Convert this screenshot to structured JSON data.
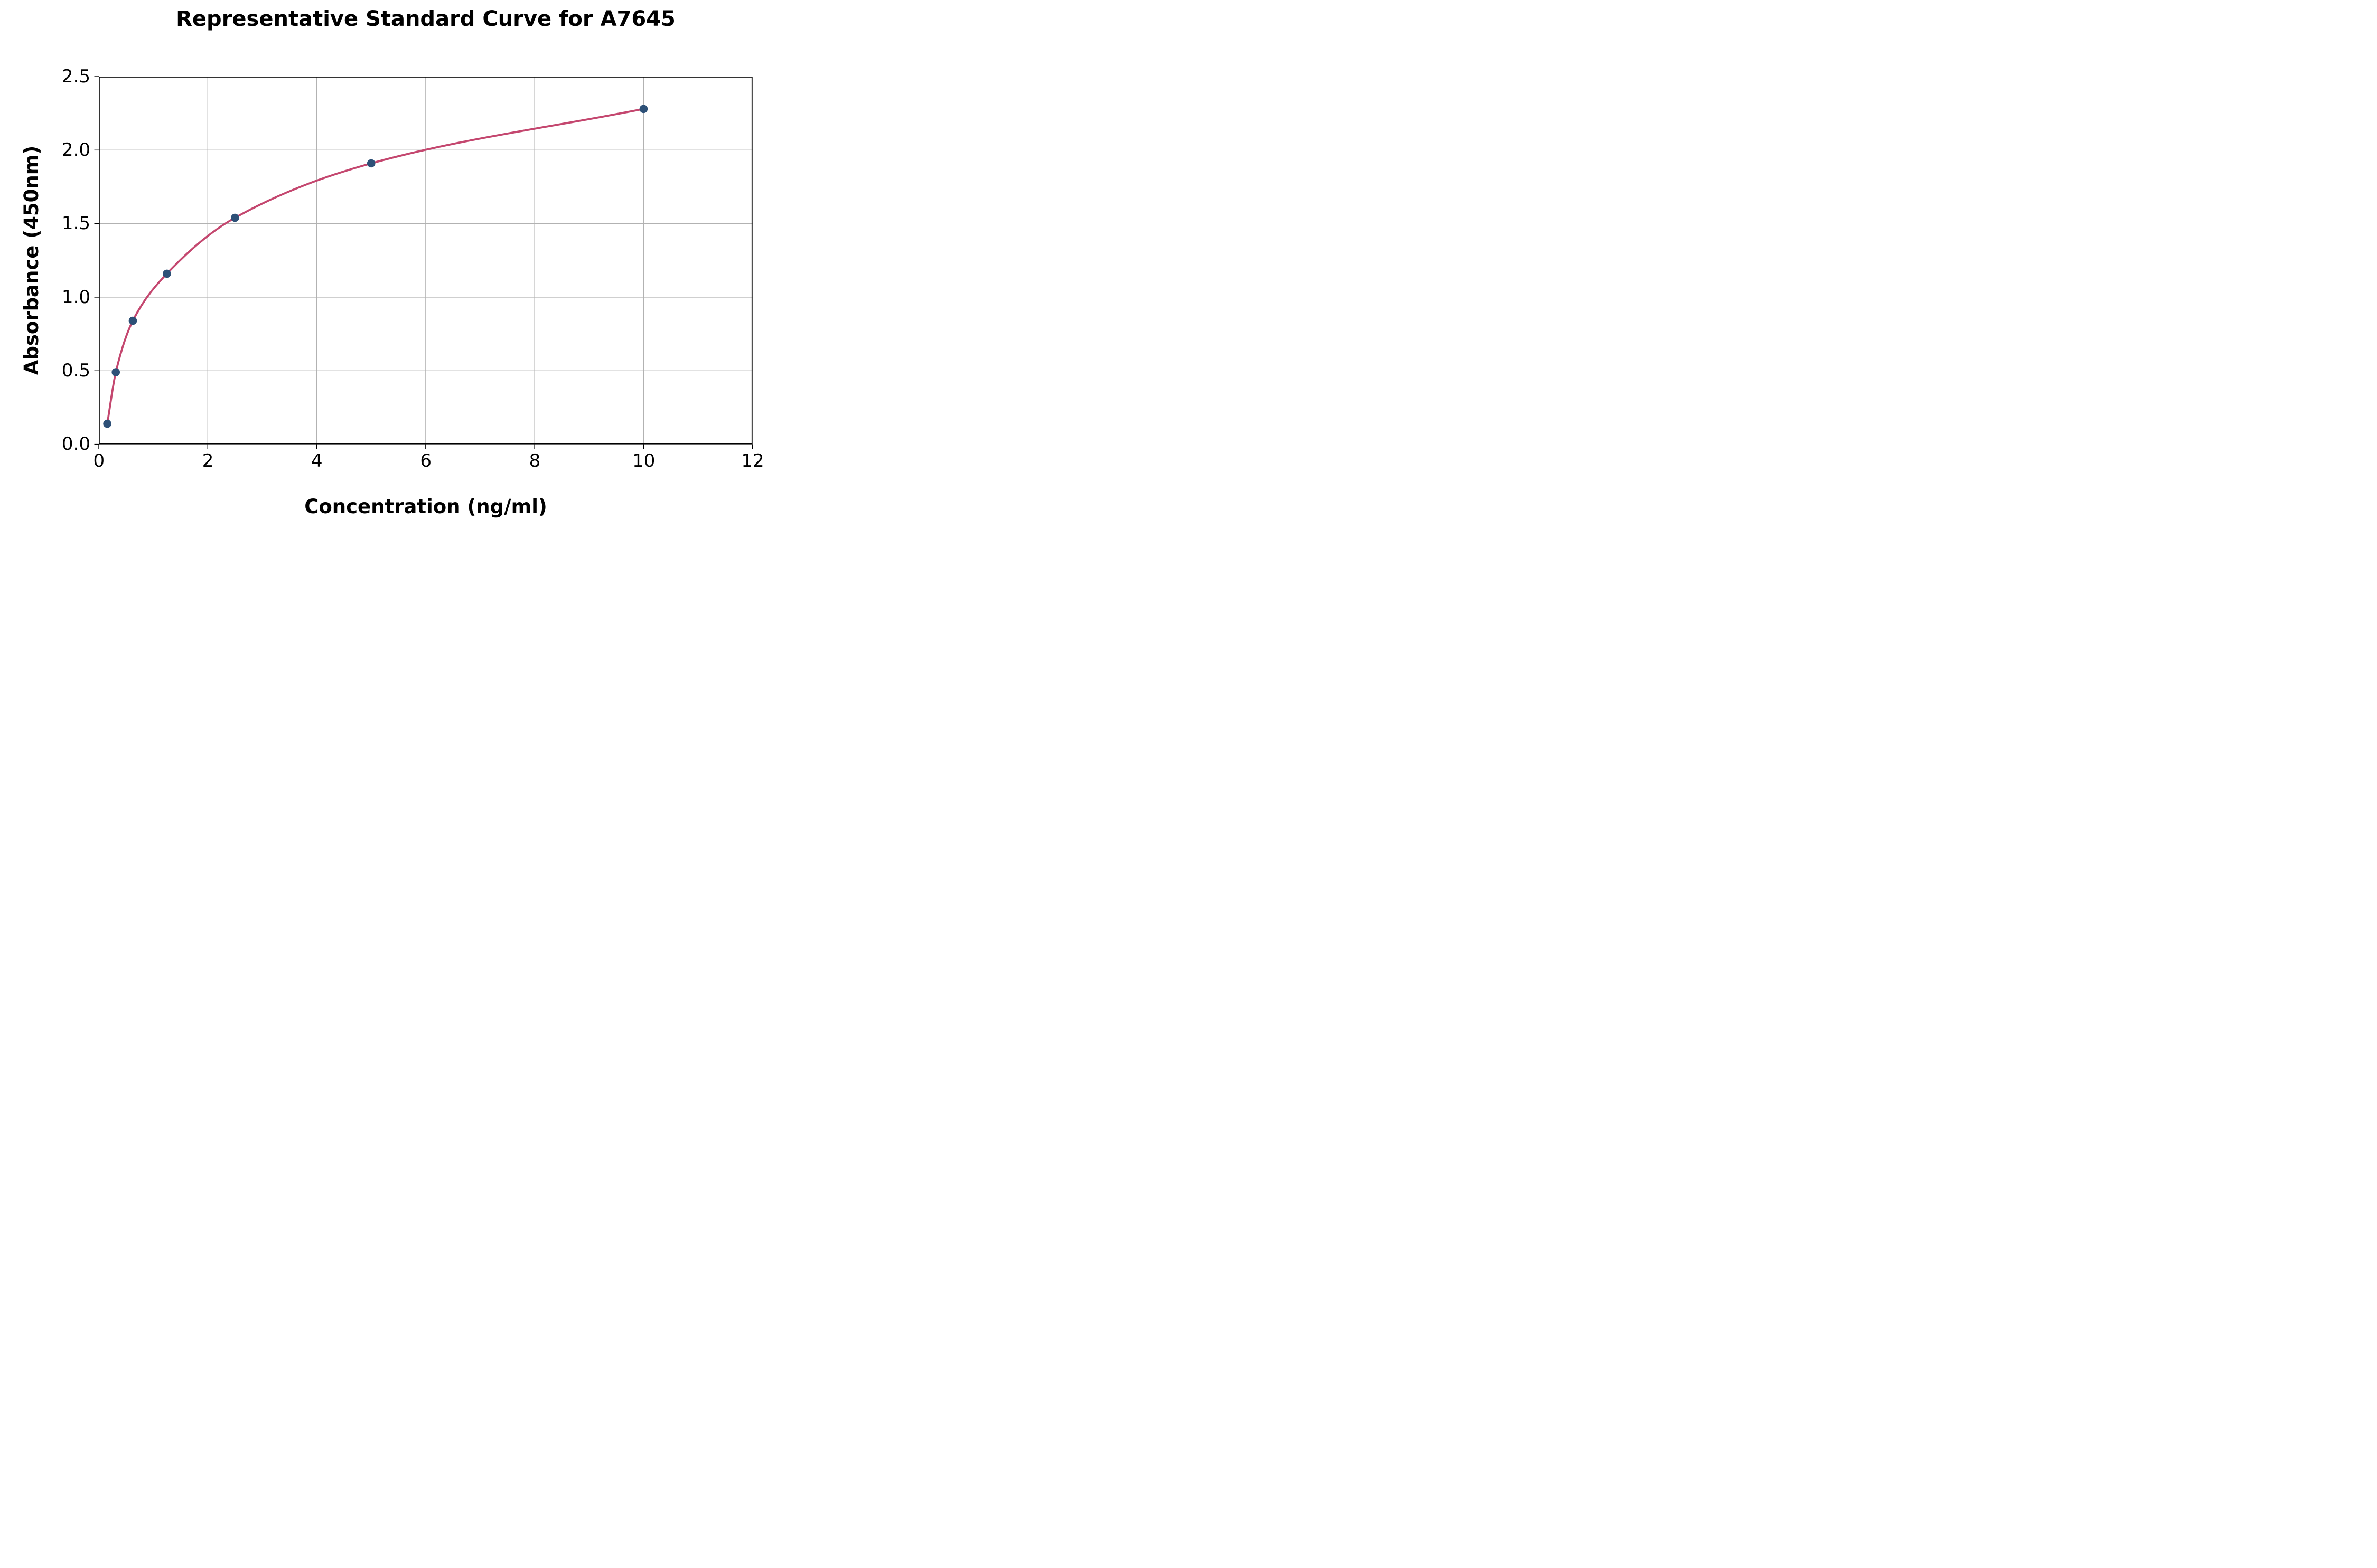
{
  "chart_data": {
    "type": "line",
    "title": "Representative Standard Curve for A7645",
    "xlabel": "Concentration (ng/ml)",
    "ylabel": "Absorbance (450nm)",
    "x": [
      0.156,
      0.3125,
      0.625,
      1.25,
      2.5,
      5,
      10
    ],
    "y": [
      0.14,
      0.49,
      0.84,
      1.16,
      1.54,
      1.91,
      2.28
    ],
    "xlim": [
      0,
      12
    ],
    "ylim": [
      0,
      2.5
    ],
    "xticks": [
      0,
      2,
      4,
      6,
      8,
      10,
      12
    ],
    "xtick_labels": [
      "0",
      "2",
      "4",
      "6",
      "8",
      "10",
      "12"
    ],
    "yticks": [
      0,
      0.5,
      1.0,
      1.5,
      2.0,
      2.5
    ],
    "ytick_labels": [
      "0.0",
      "0.5",
      "1.0",
      "1.5",
      "2.0",
      "2.5"
    ],
    "grid": true,
    "legend_position": "none",
    "marker": "circle",
    "colors": {
      "curve": "#C4476F",
      "marker": "#2D5077",
      "grid": "#B2B2B2",
      "axis": "#000000",
      "background": "#FFFFFF"
    }
  }
}
